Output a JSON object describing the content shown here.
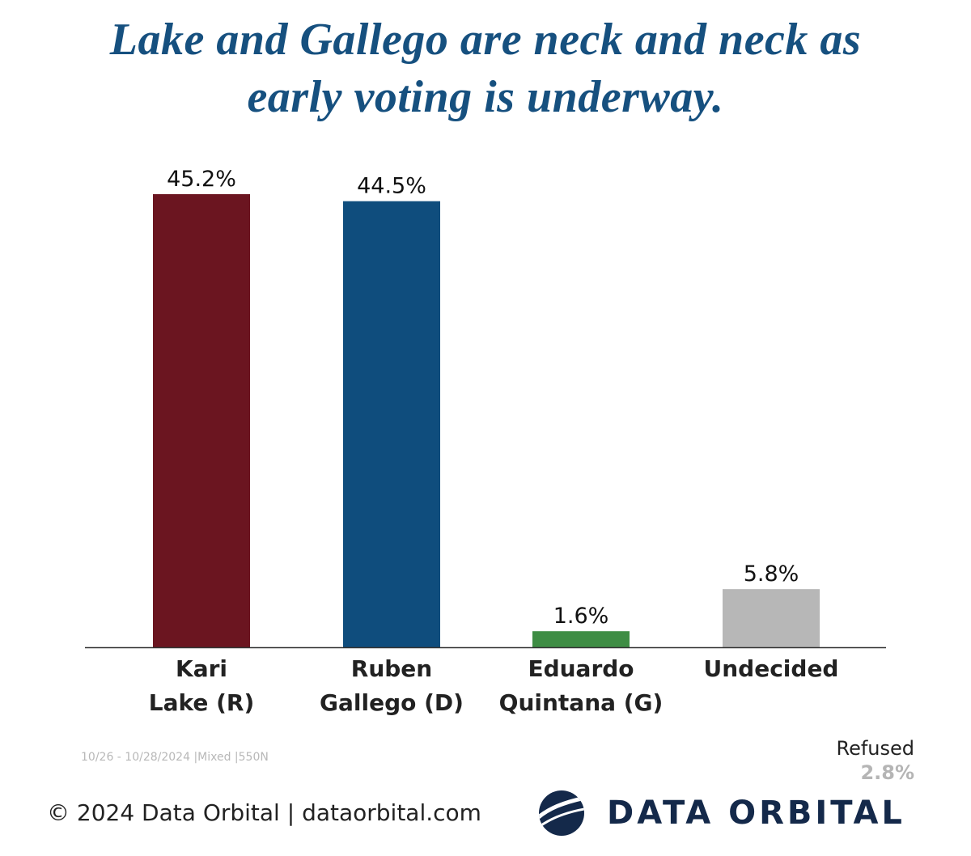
{
  "title_lines": [
    "Lake and Gallego are neck and neck as",
    "early voting is underway."
  ],
  "chart_data": {
    "type": "bar",
    "categories": [
      [
        "Kari",
        "Lake (R)"
      ],
      [
        "Ruben",
        "Gallego (D)"
      ],
      [
        "Eduardo",
        "Quintana (G)"
      ],
      [
        "Undecided"
      ]
    ],
    "values": [
      45.2,
      44.5,
      1.6,
      5.8
    ],
    "value_labels": [
      "45.2%",
      "44.5%",
      "1.6%",
      "5.8%"
    ],
    "colors": [
      "#6b1520",
      "#0f4d7d",
      "#3e8d44",
      "#b7b7b7"
    ],
    "ylim": [
      0,
      45.2
    ],
    "grid": false,
    "legend": "none",
    "xlabel": "",
    "ylabel": ""
  },
  "survey_meta": "10/26 - 10/28/2024 |Mixed |550N",
  "refused": {
    "label": "Refused",
    "value": "2.8%"
  },
  "footer": {
    "copyright": "© 2024 Data Orbital | dataorbital.com"
  },
  "logo": {
    "icon": "data-orbital-globe-icon",
    "text": "DATA ORBITAL",
    "color": "#14294a"
  }
}
